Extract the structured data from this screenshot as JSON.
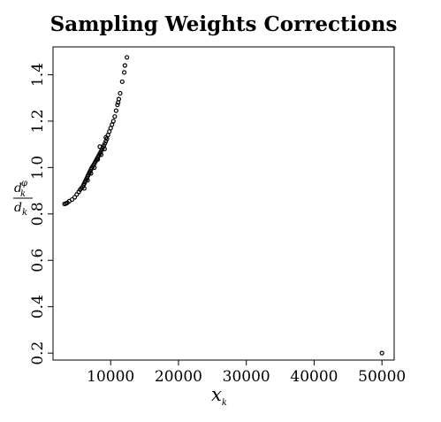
{
  "chart_data": {
    "type": "scatter",
    "title": "Sampling Weights Corrections",
    "xlabel_main": "x",
    "xlabel_sub": "k",
    "ylabel_num_main": "d",
    "ylabel_num_sub": "k",
    "ylabel_num_sup": "φ",
    "ylabel_den_main": "d",
    "ylabel_den_sub": "k",
    "xlim": [
      1500,
      51800
    ],
    "ylim": [
      0.17,
      1.52
    ],
    "x_ticks": [
      10000,
      20000,
      30000,
      40000,
      50000
    ],
    "x_tick_labels": [
      "10000",
      "20000",
      "30000",
      "40000",
      "50000"
    ],
    "y_ticks": [
      0.2,
      0.4,
      0.6,
      0.8,
      1.0,
      1.2,
      1.4
    ],
    "y_tick_labels": [
      "0.2",
      "0.4",
      "0.6",
      "0.8",
      "1.0",
      "1.2",
      "1.4"
    ],
    "grid": false,
    "marker_color": "#000000",
    "points": [
      [
        3200,
        0.843
      ],
      [
        3400,
        0.845
      ],
      [
        3600,
        0.848
      ],
      [
        3900,
        0.855
      ],
      [
        4300,
        0.862
      ],
      [
        4700,
        0.872
      ],
      [
        5000,
        0.884
      ],
      [
        5300,
        0.895
      ],
      [
        5500,
        0.905
      ],
      [
        5700,
        0.912
      ],
      [
        5900,
        0.918
      ],
      [
        6000,
        0.925
      ],
      [
        6100,
        0.93
      ],
      [
        6200,
        0.937
      ],
      [
        6300,
        0.943
      ],
      [
        6400,
        0.949
      ],
      [
        6500,
        0.955
      ],
      [
        6600,
        0.962
      ],
      [
        6700,
        0.968
      ],
      [
        6800,
        0.974
      ],
      [
        6900,
        0.98
      ],
      [
        7000,
        0.986
      ],
      [
        7100,
        0.992
      ],
      [
        7200,
        0.998
      ],
      [
        7350,
        1.005
      ],
      [
        7500,
        1.012
      ],
      [
        7650,
        1.02
      ],
      [
        7800,
        1.028
      ],
      [
        7950,
        1.036
      ],
      [
        8100,
        1.044
      ],
      [
        8250,
        1.052
      ],
      [
        8400,
        1.06
      ],
      [
        8550,
        1.068
      ],
      [
        8700,
        1.077
      ],
      [
        8850,
        1.086
      ],
      [
        9000,
        1.095
      ],
      [
        9150,
        1.104
      ],
      [
        9300,
        1.114
      ],
      [
        9450,
        1.124
      ],
      [
        9600,
        1.14
      ],
      [
        9800,
        1.155
      ],
      [
        10000,
        1.17
      ],
      [
        10200,
        1.185
      ],
      [
        10400,
        1.2
      ],
      [
        10600,
        1.22
      ],
      [
        10800,
        1.245
      ],
      [
        11000,
        1.27
      ],
      [
        11200,
        1.295
      ],
      [
        11400,
        1.32
      ],
      [
        11700,
        1.37
      ],
      [
        12000,
        1.41
      ],
      [
        12100,
        1.44
      ],
      [
        12400,
        1.475
      ],
      [
        6100,
        0.91
      ],
      [
        6600,
        0.945
      ],
      [
        7100,
        0.975
      ],
      [
        7600,
        1.0
      ],
      [
        8100,
        1.035
      ],
      [
        8600,
        1.055
      ],
      [
        9100,
        1.08
      ],
      [
        8400,
        1.09
      ],
      [
        9300,
        1.13
      ],
      [
        11100,
        1.28
      ],
      [
        50000,
        0.2
      ]
    ]
  }
}
